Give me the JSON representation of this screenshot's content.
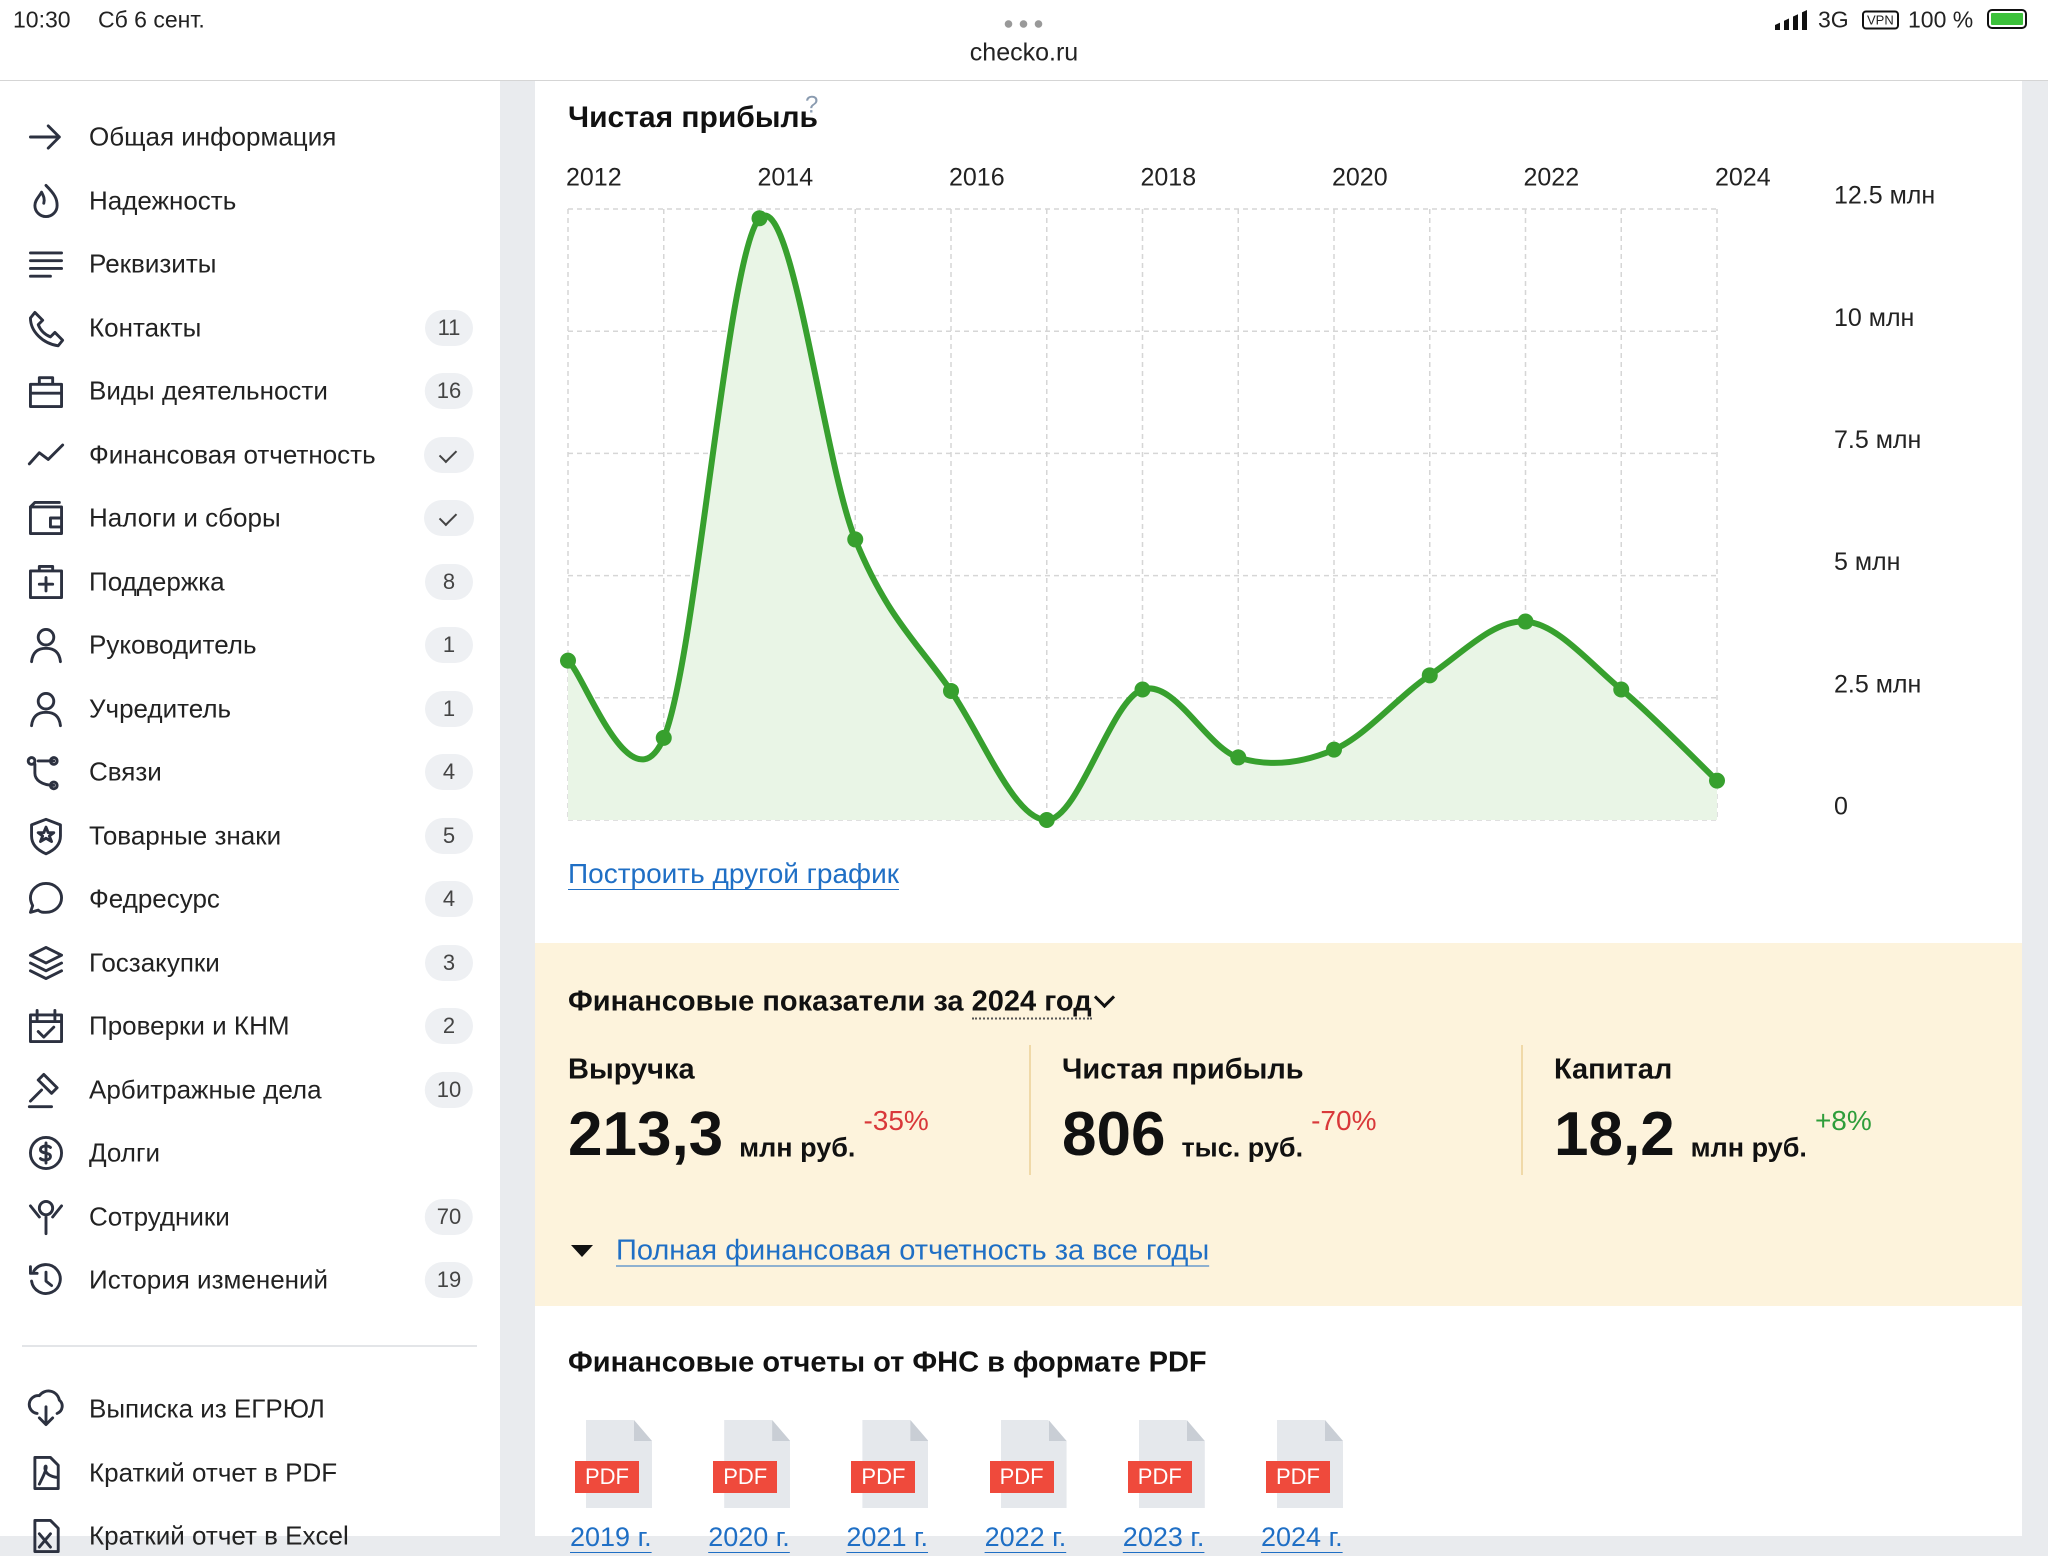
{
  "status_bar": {
    "time": "10:30",
    "date": "Сб 6 сент.",
    "url": "checko.ru",
    "network": "3G",
    "vpn": "VPN",
    "battery": "100 %"
  },
  "sidebar": {
    "items": [
      {
        "label": "Общая информация"
      },
      {
        "label": "Надежность"
      },
      {
        "label": "Реквизиты"
      },
      {
        "label": "Контакты",
        "badge": 11
      },
      {
        "label": "Виды деятельности",
        "badge": 16
      },
      {
        "label": "Финансовая отчетность",
        "checked": true
      },
      {
        "label": "Налоги и сборы",
        "checked": true
      },
      {
        "label": "Поддержка",
        "badge": 8
      },
      {
        "label": "Руководитель",
        "badge": 1
      },
      {
        "label": "Учредитель",
        "badge": 1
      },
      {
        "label": "Связи",
        "badge": 4
      },
      {
        "label": "Товарные знаки",
        "badge": 5
      },
      {
        "label": "Федресурс",
        "badge": 4
      },
      {
        "label": "Госзакупки",
        "badge": 3
      },
      {
        "label": "Проверки и КНМ",
        "badge": 2
      },
      {
        "label": "Арбитражные дела",
        "badge": 10
      },
      {
        "label": "Долги"
      },
      {
        "label": "Сотрудники",
        "badge": 70
      },
      {
        "label": "История изменений",
        "badge": 19
      }
    ],
    "extra": [
      {
        "label": "Выписка из ЕГРЮЛ"
      },
      {
        "label": "Краткий отчет в PDF"
      },
      {
        "label": "Краткий отчет в Excel"
      }
    ]
  },
  "chart_section": {
    "help": "?",
    "link": "Построить другой график"
  },
  "chart_data": {
    "type": "line",
    "title": "Чистая прибыль",
    "x": [
      2012,
      2013,
      2014,
      2015,
      2016,
      2017,
      2018,
      2019,
      2020,
      2021,
      2022,
      2023,
      2024
    ],
    "series": [
      {
        "color": "#37a02e",
        "values": [
          3.26,
          1.68,
          12.31,
          5.74,
          2.64,
          0,
          2.67,
          1.28,
          1.44,
          2.96,
          4.06,
          2.67,
          0.806
        ]
      }
    ],
    "area_color": "#e9f5e6",
    "xlim": [
      2012,
      2024
    ],
    "xticks": [
      2012,
      2014,
      2016,
      2018,
      2020,
      2022,
      2024
    ],
    "ylim": [
      0,
      12.5
    ],
    "yticks": [
      0,
      {
        "value": 2.5,
        "label": "2.5 млн"
      },
      {
        "value": 5,
        "label": "5 млн"
      },
      {
        "value": 7.5,
        "label": "7.5 млн"
      },
      {
        "value": 10,
        "label": "10 млн"
      },
      {
        "value": 12.5,
        "label": "12.5 млн"
      }
    ],
    "grid": true
  },
  "financials": {
    "title_prefix": "Финансовые показатели за",
    "year": "2024 год",
    "metrics": [
      {
        "label": "Выручка",
        "value": "213,3",
        "unit": "млн руб.",
        "change": "-35%",
        "change_color": "#d9383a"
      },
      {
        "label": "Чистая прибыль",
        "value": "806",
        "unit": "тыс. руб.",
        "change": "-70%",
        "change_color": "#d9383a"
      },
      {
        "label": "Капитал",
        "value": "18,2",
        "unit": "млн руб.",
        "change": "+8%",
        "change_color": "#2e9d3a"
      }
    ],
    "link": "Полная финансовая отчетность за все годы"
  },
  "pdf_reports": {
    "title": "Финансовые отчеты от ФНС в формате PDF",
    "badge": "PDF",
    "files": [
      "2019 г.",
      "2020 г.",
      "2021 г.",
      "2022 г.",
      "2023 г.",
      "2024 г."
    ]
  }
}
